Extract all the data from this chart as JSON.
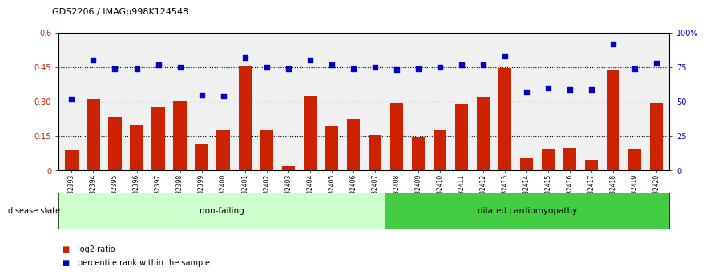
{
  "title": "GDS2206 / IMAGp998K124548",
  "categories": [
    "GSM82393",
    "GSM82394",
    "GSM82395",
    "GSM82396",
    "GSM82397",
    "GSM82398",
    "GSM82399",
    "GSM82400",
    "GSM82401",
    "GSM82402",
    "GSM82403",
    "GSM82404",
    "GSM82405",
    "GSM82406",
    "GSM82407",
    "GSM82408",
    "GSM82409",
    "GSM82410",
    "GSM82411",
    "GSM82412",
    "GSM82413",
    "GSM82414",
    "GSM82415",
    "GSM82416",
    "GSM82417",
    "GSM82418",
    "GSM82419",
    "GSM82420"
  ],
  "log2_ratio": [
    0.09,
    0.31,
    0.235,
    0.2,
    0.275,
    0.305,
    0.115,
    0.18,
    0.455,
    0.175,
    0.02,
    0.325,
    0.195,
    0.225,
    0.155,
    0.293,
    0.148,
    0.175,
    0.29,
    0.32,
    0.445,
    0.055,
    0.095,
    0.1,
    0.045,
    0.435,
    0.095,
    0.295
  ],
  "percentile": [
    52,
    80,
    74,
    74,
    77,
    75,
    55,
    54,
    82,
    75,
    74,
    80,
    77,
    74,
    75,
    73,
    74,
    75,
    77,
    77,
    83,
    57,
    60,
    59,
    59,
    92,
    74,
    78
  ],
  "non_failing_count": 15,
  "dilated_count": 13,
  "ylim_left": [
    0,
    0.6
  ],
  "ylim_right": [
    0,
    100
  ],
  "yticks_left": [
    0,
    0.15,
    0.3,
    0.45,
    0.6
  ],
  "ytick_labels_left": [
    "0",
    "0.15",
    "0.30",
    "0.45",
    "0.6"
  ],
  "yticks_right": [
    0,
    25,
    50,
    75,
    100
  ],
  "ytick_labels_right": [
    "0",
    "25",
    "50",
    "75",
    "100%"
  ],
  "bar_color": "#cc2200",
  "dot_color": "#0000cc",
  "nonfailing_color": "#ccffcc",
  "dilated_color": "#44cc44",
  "background_color": "#ffffff",
  "tick_label_color_left": "#cc2200",
  "tick_label_color_right": "#0000cc",
  "disease_label": "disease state",
  "nonfailing_label": "non-failing",
  "dilated_label": "dilated cardiomyopathy",
  "legend_bar_label": "log2 ratio",
  "legend_dot_label": "percentile rank within the sample"
}
